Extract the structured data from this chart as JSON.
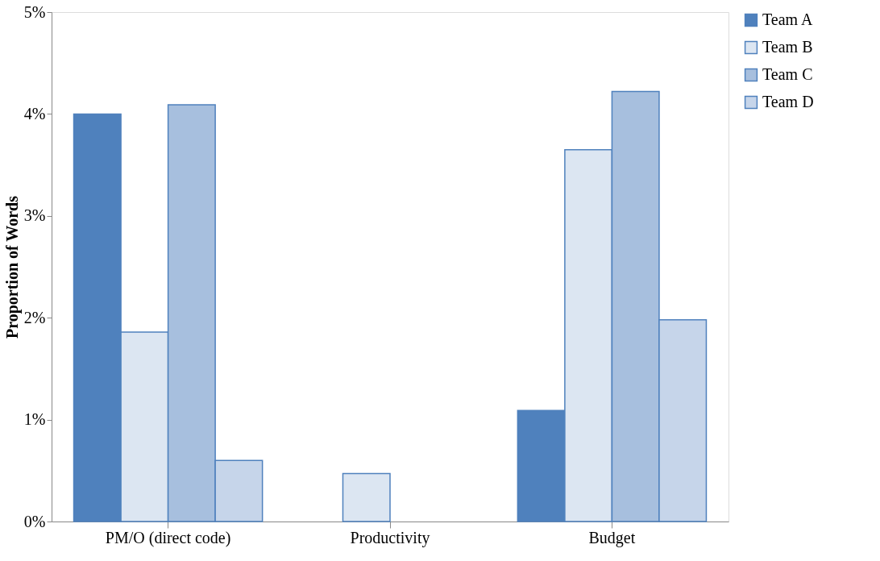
{
  "chart_data": {
    "type": "bar",
    "ylabel": "Proportion of Words",
    "categories": [
      "PM/O (direct code)",
      "Productivity",
      "Budget"
    ],
    "series": [
      {
        "name": "Team A",
        "color": "#4f81bd",
        "values": [
          4.0,
          null,
          1.09
        ]
      },
      {
        "name": "Team B",
        "color": "#dce6f2",
        "values": [
          1.86,
          0.47,
          3.65
        ]
      },
      {
        "name": "Team C",
        "color": "#a7bfde",
        "values": [
          4.09,
          null,
          4.22
        ]
      },
      {
        "name": "Team D",
        "color": "#c6d5ea",
        "values": [
          0.6,
          null,
          1.98
        ]
      }
    ],
    "ylim": [
      0,
      5
    ],
    "yticks": [
      {
        "value": 0,
        "label": "0%"
      },
      {
        "value": 1,
        "label": "1%"
      },
      {
        "value": 2,
        "label": "2%"
      },
      {
        "value": 3,
        "label": "3%"
      },
      {
        "value": 4,
        "label": "4%"
      },
      {
        "value": 5,
        "label": "5%"
      }
    ],
    "grid": false,
    "legend": "right"
  }
}
